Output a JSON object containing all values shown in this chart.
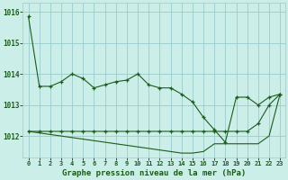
{
  "title": "Graphe pression niveau de la mer (hPa)",
  "background_color": "#cceee8",
  "grid_color": "#99cccc",
  "line_color": "#1a5c1a",
  "hours": [
    0,
    1,
    2,
    3,
    4,
    5,
    6,
    7,
    8,
    9,
    10,
    11,
    12,
    13,
    14,
    15,
    16,
    17,
    18,
    19,
    20,
    21,
    22,
    23
  ],
  "series1": [
    1015.85,
    1013.6,
    1013.6,
    1013.75,
    1014.0,
    1013.85,
    1013.55,
    1013.65,
    1013.75,
    1013.8,
    1014.0,
    1013.65,
    1013.55,
    1013.55,
    1013.35,
    1013.1,
    1012.6,
    1012.2,
    1011.8,
    1013.25,
    1013.25,
    1013.0,
    1013.25,
    1013.35
  ],
  "series2": [
    1012.15,
    1012.15,
    1012.15,
    1012.15,
    1012.15,
    1012.15,
    1012.15,
    1012.15,
    1012.15,
    1012.15,
    1012.15,
    1012.15,
    1012.15,
    1012.15,
    1012.15,
    1012.15,
    1012.15,
    1012.15,
    1012.15,
    1012.15,
    1012.15,
    1012.4,
    1013.0,
    1013.35
  ],
  "series3": [
    1012.15,
    1012.1,
    1012.05,
    1012.0,
    1011.95,
    1011.9,
    1011.85,
    1011.8,
    1011.75,
    1011.7,
    1011.65,
    1011.6,
    1011.55,
    1011.5,
    1011.45,
    1011.45,
    1011.5,
    1011.75,
    1011.75,
    1011.75,
    1011.75,
    1011.75,
    1012.0,
    1013.35
  ],
  "ylim_min": 1011.3,
  "ylim_max": 1016.3,
  "yticks": [
    1012,
    1013,
    1014,
    1015,
    1016
  ],
  "xtick_labels": [
    "0",
    "1",
    "2",
    "3",
    "4",
    "5",
    "6",
    "7",
    "8",
    "9",
    "10",
    "11",
    "12",
    "13",
    "14",
    "15",
    "16",
    "17",
    "18",
    "19",
    "20",
    "21",
    "22",
    "23"
  ]
}
